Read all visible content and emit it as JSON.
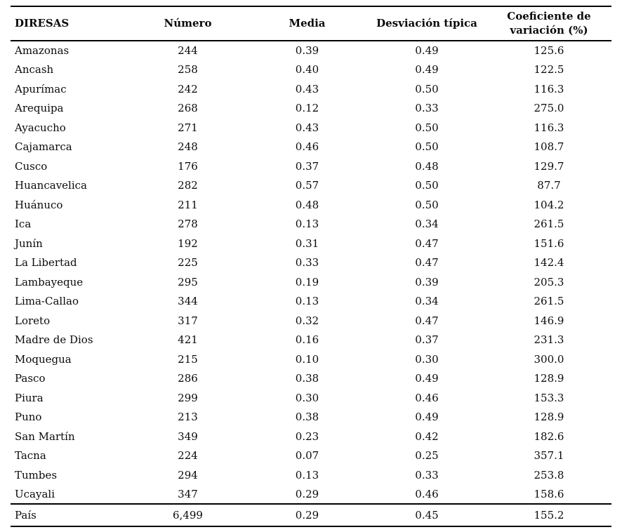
{
  "table": {
    "columns": [
      {
        "label": "DIRESAS",
        "align": "left"
      },
      {
        "label": "Número",
        "align": "center"
      },
      {
        "label": "Media",
        "align": "center"
      },
      {
        "label": "Desviación típica",
        "align": "center"
      },
      {
        "label": "Coeficiente de variación (%)",
        "align": "center"
      }
    ],
    "rows": [
      [
        "Amazonas",
        "244",
        "0.39",
        "0.49",
        "125.6"
      ],
      [
        "Ancash",
        "258",
        "0.40",
        "0.49",
        "122.5"
      ],
      [
        "Apurímac",
        "242",
        "0.43",
        "0.50",
        "116.3"
      ],
      [
        "Arequipa",
        "268",
        "0.12",
        "0.33",
        "275.0"
      ],
      [
        "Ayacucho",
        "271",
        "0.43",
        "0.50",
        "116.3"
      ],
      [
        "Cajamarca",
        "248",
        "0.46",
        "0.50",
        "108.7"
      ],
      [
        "Cusco",
        "176",
        "0.37",
        "0.48",
        "129.7"
      ],
      [
        "Huancavelica",
        "282",
        "0.57",
        "0.50",
        "87.7"
      ],
      [
        "Huánuco",
        "211",
        "0.48",
        "0.50",
        "104.2"
      ],
      [
        "Ica",
        "278",
        "0.13",
        "0.34",
        "261.5"
      ],
      [
        "Junín",
        "192",
        "0.31",
        "0.47",
        "151.6"
      ],
      [
        "La Libertad",
        "225",
        "0.33",
        "0.47",
        "142.4"
      ],
      [
        "Lambayeque",
        "295",
        "0.19",
        "0.39",
        "205.3"
      ],
      [
        "Lima-Callao",
        "344",
        "0.13",
        "0.34",
        "261.5"
      ],
      [
        "Loreto",
        "317",
        "0.32",
        "0.47",
        "146.9"
      ],
      [
        "Madre de Dios",
        "421",
        "0.16",
        "0.37",
        "231.3"
      ],
      [
        "Moquegua",
        "215",
        "0.10",
        "0.30",
        "300.0"
      ],
      [
        "Pasco",
        "286",
        "0.38",
        "0.49",
        "128.9"
      ],
      [
        "Piura",
        "299",
        "0.30",
        "0.46",
        "153.3"
      ],
      [
        "Puno",
        "213",
        "0.38",
        "0.49",
        "128.9"
      ],
      [
        "San Martín",
        "349",
        "0.23",
        "0.42",
        "182.6"
      ],
      [
        "Tacna",
        "224",
        "0.07",
        "0.25",
        "357.1"
      ],
      [
        "Tumbes",
        "294",
        "0.13",
        "0.33",
        "253.8"
      ],
      [
        "Ucayali",
        "347",
        "0.29",
        "0.46",
        "158.6"
      ]
    ],
    "footer_row": [
      "País",
      "6,499",
      "0.29",
      "0.45",
      "155.2"
    ]
  }
}
